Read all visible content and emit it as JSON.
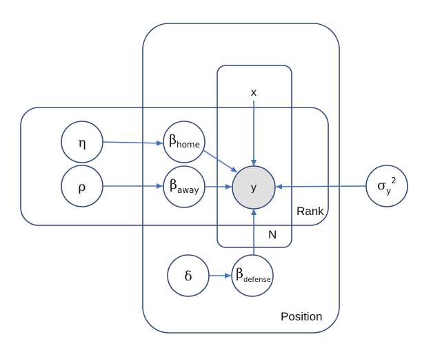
{
  "plates": {
    "position": "Position",
    "rank": "Rank",
    "n": "N"
  },
  "nodes": {
    "x": "x",
    "eta": "η",
    "rho": "ρ",
    "delta": "δ",
    "y": "y",
    "beta_home": {
      "symbol": "β",
      "sub": "home"
    },
    "beta_away": {
      "symbol": "β",
      "sub": "away"
    },
    "beta_defense": {
      "symbol": "β",
      "sub": "defense"
    },
    "sigma_y2": {
      "symbol": "σ",
      "sub": "y",
      "sup": "2"
    }
  },
  "colors": {
    "plate_stroke": "#2f4b7c",
    "edge": "#4472c4",
    "observed_fill": "#e0e0e0"
  }
}
